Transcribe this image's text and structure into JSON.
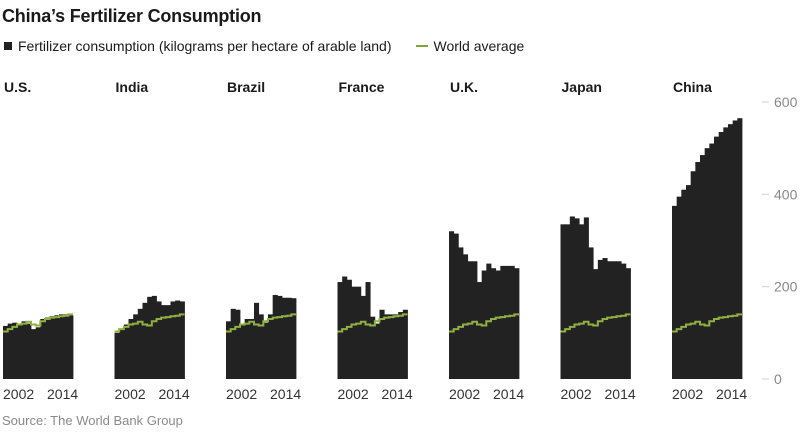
{
  "title": "China’s Fertilizer Consumption",
  "legend": {
    "bar_label": "Fertilizer consumption (kilograms per hectare of arable land)",
    "line_label": "World average"
  },
  "source": "Source: The World Bank Group",
  "colors": {
    "bar": "#222222",
    "line": "#8fb043",
    "grid": "#cfcfcf"
  },
  "chart_data": {
    "type": "bar",
    "layout": "small-multiples",
    "years": [
      2002,
      2003,
      2004,
      2005,
      2006,
      2007,
      2008,
      2009,
      2010,
      2011,
      2012,
      2013,
      2014,
      2015,
      2016
    ],
    "x_tick_labels": [
      "2002",
      "2014"
    ],
    "ylim": [
      0,
      600
    ],
    "y_ticks": [
      0,
      200,
      400,
      600
    ],
    "world_average": [
      103,
      108,
      113,
      118,
      120,
      124,
      118,
      116,
      125,
      130,
      133,
      134,
      136,
      137,
      140
    ],
    "panels": [
      {
        "name": "U.S.",
        "values": [
          115,
          120,
          122,
          118,
          125,
          120,
          108,
          112,
          130,
          133,
          136,
          138,
          140,
          140,
          138
        ]
      },
      {
        "name": "India",
        "values": [
          100,
          108,
          118,
          130,
          140,
          152,
          165,
          178,
          180,
          168,
          160,
          160,
          168,
          170,
          168
        ]
      },
      {
        "name": "Brazil",
        "values": [
          125,
          152,
          150,
          120,
          130,
          130,
          165,
          140,
          122,
          140,
          182,
          180,
          176,
          176,
          175
        ]
      },
      {
        "name": "France",
        "values": [
          210,
          222,
          215,
          200,
          200,
          180,
          210,
          135,
          120,
          150,
          140,
          140,
          140,
          145,
          150
        ]
      },
      {
        "name": "U.K.",
        "values": [
          320,
          315,
          285,
          270,
          255,
          255,
          210,
          235,
          250,
          240,
          235,
          245,
          245,
          245,
          240
        ]
      },
      {
        "name": "Japan",
        "values": [
          335,
          335,
          352,
          348,
          335,
          350,
          285,
          238,
          258,
          262,
          255,
          255,
          255,
          250,
          240
        ]
      },
      {
        "name": "China",
        "values": [
          375,
          395,
          410,
          420,
          450,
          470,
          485,
          500,
          510,
          525,
          535,
          545,
          552,
          560,
          565
        ]
      }
    ]
  }
}
